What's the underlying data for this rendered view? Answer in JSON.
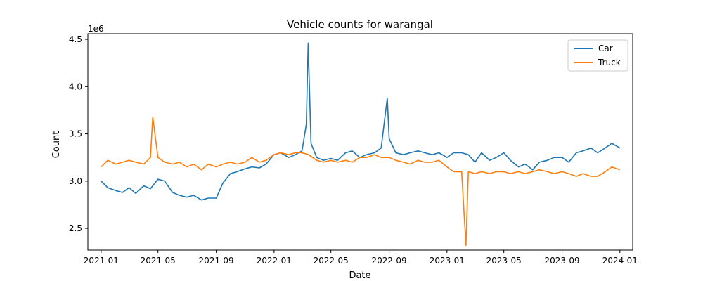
{
  "chart_data": {
    "type": "line",
    "title": "Vehicle counts for warangal",
    "xlabel": "Date",
    "ylabel": "Count",
    "y_offset_text": "1e6",
    "x_range": [
      "2020-12-04",
      "2024-01-28"
    ],
    "ylim": [
      2.27,
      4.56
    ],
    "y_ticks": [
      2.5,
      3.0,
      3.5,
      4.0,
      4.5
    ],
    "y_tick_labels": [
      "2.5",
      "3.0",
      "3.5",
      "4.0",
      "4.5"
    ],
    "x_ticks": [
      "2021-01-01",
      "2021-05-01",
      "2021-09-01",
      "2022-01-01",
      "2022-05-01",
      "2022-09-01",
      "2023-01-01",
      "2023-05-01",
      "2023-09-01",
      "2024-01-01"
    ],
    "x_tick_labels": [
      "2021-01",
      "2021-05",
      "2021-09",
      "2022-01",
      "2022-05",
      "2022-09",
      "2023-01",
      "2023-05",
      "2023-09",
      "2024-01"
    ],
    "grid": false,
    "legend_position": "upper right",
    "series": [
      {
        "name": "Car",
        "color": "#1f77b4",
        "points": [
          [
            "2021-01-01",
            3.0
          ],
          [
            "2021-01-15",
            2.93
          ],
          [
            "2021-02-01",
            2.9
          ],
          [
            "2021-02-15",
            2.88
          ],
          [
            "2021-03-01",
            2.93
          ],
          [
            "2021-03-15",
            2.87
          ],
          [
            "2021-04-01",
            2.95
          ],
          [
            "2021-04-15",
            2.92
          ],
          [
            "2021-05-01",
            3.02
          ],
          [
            "2021-05-15",
            3.0
          ],
          [
            "2021-06-01",
            2.88
          ],
          [
            "2021-06-15",
            2.85
          ],
          [
            "2021-07-01",
            2.83
          ],
          [
            "2021-07-15",
            2.85
          ],
          [
            "2021-08-01",
            2.8
          ],
          [
            "2021-08-15",
            2.82
          ],
          [
            "2021-09-01",
            2.82
          ],
          [
            "2021-09-15",
            2.98
          ],
          [
            "2021-10-01",
            3.08
          ],
          [
            "2021-10-15",
            3.1
          ],
          [
            "2021-11-01",
            3.13
          ],
          [
            "2021-11-15",
            3.15
          ],
          [
            "2021-12-01",
            3.14
          ],
          [
            "2021-12-15",
            3.18
          ],
          [
            "2022-01-01",
            3.28
          ],
          [
            "2022-01-15",
            3.3
          ],
          [
            "2022-02-01",
            3.25
          ],
          [
            "2022-02-15",
            3.28
          ],
          [
            "2022-03-01",
            3.32
          ],
          [
            "2022-03-10",
            3.6
          ],
          [
            "2022-03-14",
            4.46
          ],
          [
            "2022-03-20",
            3.4
          ],
          [
            "2022-04-01",
            3.25
          ],
          [
            "2022-04-15",
            3.22
          ],
          [
            "2022-05-01",
            3.24
          ],
          [
            "2022-05-15",
            3.22
          ],
          [
            "2022-06-01",
            3.3
          ],
          [
            "2022-06-15",
            3.32
          ],
          [
            "2022-07-01",
            3.25
          ],
          [
            "2022-07-15",
            3.28
          ],
          [
            "2022-08-01",
            3.3
          ],
          [
            "2022-08-15",
            3.35
          ],
          [
            "2022-08-28",
            3.88
          ],
          [
            "2022-09-01",
            3.45
          ],
          [
            "2022-09-15",
            3.3
          ],
          [
            "2022-10-01",
            3.28
          ],
          [
            "2022-10-15",
            3.3
          ],
          [
            "2022-11-01",
            3.32
          ],
          [
            "2022-11-15",
            3.3
          ],
          [
            "2022-12-01",
            3.28
          ],
          [
            "2022-12-15",
            3.3
          ],
          [
            "2023-01-01",
            3.25
          ],
          [
            "2023-01-15",
            3.3
          ],
          [
            "2023-02-01",
            3.3
          ],
          [
            "2023-02-15",
            3.28
          ],
          [
            "2023-03-01",
            3.2
          ],
          [
            "2023-03-15",
            3.3
          ],
          [
            "2023-04-01",
            3.22
          ],
          [
            "2023-04-15",
            3.25
          ],
          [
            "2023-05-01",
            3.3
          ],
          [
            "2023-05-15",
            3.22
          ],
          [
            "2023-06-01",
            3.15
          ],
          [
            "2023-06-15",
            3.18
          ],
          [
            "2023-07-01",
            3.12
          ],
          [
            "2023-07-15",
            3.2
          ],
          [
            "2023-08-01",
            3.22
          ],
          [
            "2023-08-15",
            3.25
          ],
          [
            "2023-09-01",
            3.25
          ],
          [
            "2023-09-15",
            3.2
          ],
          [
            "2023-10-01",
            3.3
          ],
          [
            "2023-10-15",
            3.32
          ],
          [
            "2023-11-01",
            3.35
          ],
          [
            "2023-11-15",
            3.3
          ],
          [
            "2023-12-01",
            3.35
          ],
          [
            "2023-12-15",
            3.4
          ],
          [
            "2024-01-01",
            3.35
          ]
        ]
      },
      {
        "name": "Truck",
        "color": "#ff7f0e",
        "points": [
          [
            "2021-01-01",
            3.15
          ],
          [
            "2021-01-15",
            3.22
          ],
          [
            "2021-02-01",
            3.18
          ],
          [
            "2021-02-15",
            3.2
          ],
          [
            "2021-03-01",
            3.22
          ],
          [
            "2021-03-15",
            3.2
          ],
          [
            "2021-04-01",
            3.18
          ],
          [
            "2021-04-15",
            3.25
          ],
          [
            "2021-04-20",
            3.68
          ],
          [
            "2021-05-01",
            3.25
          ],
          [
            "2021-05-15",
            3.2
          ],
          [
            "2021-06-01",
            3.18
          ],
          [
            "2021-06-15",
            3.2
          ],
          [
            "2021-07-01",
            3.15
          ],
          [
            "2021-07-15",
            3.18
          ],
          [
            "2021-08-01",
            3.12
          ],
          [
            "2021-08-15",
            3.18
          ],
          [
            "2021-09-01",
            3.15
          ],
          [
            "2021-09-15",
            3.18
          ],
          [
            "2021-10-01",
            3.2
          ],
          [
            "2021-10-15",
            3.18
          ],
          [
            "2021-11-01",
            3.2
          ],
          [
            "2021-11-15",
            3.25
          ],
          [
            "2021-12-01",
            3.2
          ],
          [
            "2021-12-15",
            3.22
          ],
          [
            "2022-01-01",
            3.28
          ],
          [
            "2022-01-15",
            3.3
          ],
          [
            "2022-02-01",
            3.28
          ],
          [
            "2022-02-15",
            3.3
          ],
          [
            "2022-03-01",
            3.3
          ],
          [
            "2022-03-15",
            3.28
          ],
          [
            "2022-04-01",
            3.22
          ],
          [
            "2022-04-15",
            3.2
          ],
          [
            "2022-05-01",
            3.22
          ],
          [
            "2022-05-15",
            3.2
          ],
          [
            "2022-06-01",
            3.22
          ],
          [
            "2022-06-15",
            3.2
          ],
          [
            "2022-07-01",
            3.25
          ],
          [
            "2022-07-15",
            3.25
          ],
          [
            "2022-08-01",
            3.28
          ],
          [
            "2022-08-15",
            3.25
          ],
          [
            "2022-09-01",
            3.25
          ],
          [
            "2022-09-15",
            3.22
          ],
          [
            "2022-10-01",
            3.2
          ],
          [
            "2022-10-15",
            3.18
          ],
          [
            "2022-11-01",
            3.22
          ],
          [
            "2022-11-15",
            3.2
          ],
          [
            "2022-12-01",
            3.2
          ],
          [
            "2022-12-15",
            3.22
          ],
          [
            "2023-01-01",
            3.15
          ],
          [
            "2023-01-15",
            3.1
          ],
          [
            "2023-02-01",
            3.1
          ],
          [
            "2023-02-10",
            2.32
          ],
          [
            "2023-02-15",
            3.1
          ],
          [
            "2023-03-01",
            3.08
          ],
          [
            "2023-03-15",
            3.1
          ],
          [
            "2023-04-01",
            3.08
          ],
          [
            "2023-04-15",
            3.1
          ],
          [
            "2023-05-01",
            3.1
          ],
          [
            "2023-05-15",
            3.08
          ],
          [
            "2023-06-01",
            3.1
          ],
          [
            "2023-06-15",
            3.08
          ],
          [
            "2023-07-01",
            3.1
          ],
          [
            "2023-07-15",
            3.12
          ],
          [
            "2023-08-01",
            3.1
          ],
          [
            "2023-08-15",
            3.08
          ],
          [
            "2023-09-01",
            3.1
          ],
          [
            "2023-09-15",
            3.08
          ],
          [
            "2023-10-01",
            3.05
          ],
          [
            "2023-10-15",
            3.08
          ],
          [
            "2023-11-01",
            3.05
          ],
          [
            "2023-11-15",
            3.05
          ],
          [
            "2023-12-01",
            3.1
          ],
          [
            "2023-12-15",
            3.15
          ],
          [
            "2024-01-01",
            3.12
          ]
        ]
      }
    ]
  }
}
